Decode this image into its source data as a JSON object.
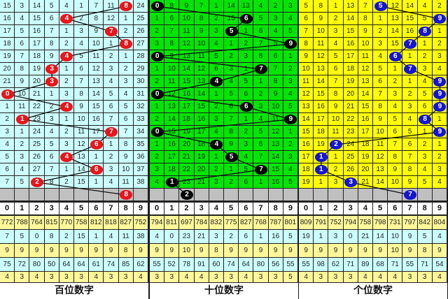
{
  "chart_data": {
    "type": "table",
    "header_digits": [
      "0",
      "1",
      "2",
      "3",
      "4",
      "5",
      "6",
      "7",
      "8",
      "9"
    ],
    "panels": [
      {
        "label": "百位数字",
        "cell_color": "#ccffff",
        "ball_color": "#e8151b",
        "rows": [
          [
            15,
            3,
            14,
            5,
            4,
            1,
            7,
            11,
            8,
            24
          ],
          [
            16,
            4,
            15,
            6,
            4,
            2,
            8,
            12,
            1,
            25
          ],
          [
            17,
            5,
            16,
            7,
            1,
            3,
            9,
            7,
            2,
            26
          ],
          [
            18,
            6,
            17,
            8,
            2,
            4,
            10,
            1,
            8,
            27
          ],
          [
            19,
            7,
            18,
            9,
            4,
            5,
            11,
            2,
            1,
            28
          ],
          [
            20,
            8,
            19,
            3,
            1,
            6,
            12,
            3,
            2,
            29
          ],
          [
            21,
            9,
            20,
            3,
            2,
            7,
            13,
            4,
            3,
            30
          ],
          [
            0,
            10,
            21,
            1,
            3,
            8,
            14,
            5,
            4,
            31
          ],
          [
            1,
            11,
            22,
            2,
            4,
            9,
            15,
            6,
            5,
            32
          ],
          [
            2,
            1,
            23,
            3,
            1,
            10,
            16,
            7,
            6,
            33
          ],
          [
            3,
            1,
            24,
            4,
            2,
            11,
            17,
            7,
            7,
            34
          ],
          [
            4,
            2,
            25,
            5,
            3,
            12,
            6,
            1,
            8,
            35
          ],
          [
            5,
            3,
            26,
            6,
            4,
            13,
            1,
            2,
            9,
            36
          ],
          [
            6,
            4,
            27,
            7,
            1,
            14,
            6,
            3,
            10,
            37
          ],
          [
            7,
            5,
            2,
            8,
            2,
            15,
            1,
            4,
            11,
            38
          ]
        ],
        "hits": [
          8,
          4,
          7,
          8,
          4,
          3,
          3,
          0,
          4,
          1,
          7,
          6,
          4,
          6,
          2
        ],
        "forecast": 8,
        "stats": [
          [
            772,
            788,
            764,
            815,
            770,
            758,
            812,
            818,
            827,
            752
          ],
          [
            7,
            5,
            0,
            8,
            2,
            15,
            1,
            4,
            11,
            38
          ],
          [
            9,
            9,
            9,
            9,
            9,
            9,
            9,
            9,
            8,
            9
          ],
          [
            75,
            72,
            80,
            50,
            64,
            64,
            61,
            74,
            85,
            62
          ],
          [
            4,
            3,
            4,
            3,
            3,
            3,
            4,
            3,
            3,
            4
          ]
        ]
      },
      {
        "label": "十位数字",
        "cell_color": "#00e600",
        "ball_color": "#000000",
        "rows": [
          [
            0,
            8,
            9,
            7,
            1,
            14,
            13,
            4,
            2,
            3
          ],
          [
            1,
            6,
            10,
            8,
            2,
            15,
            6,
            5,
            3,
            4
          ],
          [
            2,
            7,
            11,
            9,
            3,
            5,
            1,
            6,
            4,
            5
          ],
          [
            3,
            8,
            12,
            10,
            4,
            1,
            2,
            7,
            5,
            9
          ],
          [
            0,
            9,
            13,
            11,
            5,
            2,
            3,
            8,
            6,
            1
          ],
          [
            1,
            10,
            14,
            12,
            6,
            3,
            1,
            7,
            7,
            2
          ],
          [
            2,
            11,
            15,
            13,
            4,
            4,
            5,
            1,
            8,
            3
          ],
          [
            0,
            12,
            16,
            14,
            1,
            5,
            6,
            2,
            9,
            4
          ],
          [
            1,
            13,
            17,
            15,
            2,
            6,
            6,
            3,
            10,
            5
          ],
          [
            2,
            14,
            18,
            16,
            3,
            7,
            1,
            4,
            11,
            9
          ],
          [
            0,
            15,
            19,
            17,
            4,
            8,
            2,
            5,
            12,
            1
          ],
          [
            1,
            16,
            20,
            18,
            4,
            9,
            3,
            6,
            13,
            2
          ],
          [
            2,
            17,
            21,
            19,
            1,
            5,
            4,
            7,
            14,
            3
          ],
          [
            3,
            18,
            22,
            20,
            2,
            1,
            5,
            7,
            15,
            4
          ],
          [
            4,
            1,
            23,
            21,
            3,
            2,
            6,
            1,
            16,
            5
          ]
        ],
        "hits": [
          0,
          6,
          5,
          9,
          0,
          7,
          4,
          0,
          6,
          9,
          0,
          4,
          5,
          7,
          1
        ],
        "forecast": 2,
        "stats": [
          [
            794,
            811,
            697,
            784,
            832,
            775,
            827,
            768,
            787,
            801
          ],
          [
            4,
            0,
            23,
            21,
            3,
            2,
            6,
            1,
            16,
            5
          ],
          [
            9,
            9,
            10,
            9,
            8,
            9,
            9,
            9,
            9,
            9
          ],
          [
            55,
            52,
            78,
            91,
            60,
            74,
            64,
            80,
            56,
            55
          ],
          [
            3,
            3,
            4,
            4,
            3,
            3,
            4,
            3,
            3,
            5
          ]
        ]
      },
      {
        "label": "个位数字",
        "cell_color": "#ffff00",
        "ball_color": "#1414d2",
        "rows": [
          [
            5,
            8,
            1,
            13,
            7,
            5,
            12,
            14,
            4,
            2
          ],
          [
            6,
            9,
            2,
            14,
            8,
            1,
            13,
            15,
            5,
            9
          ],
          [
            7,
            10,
            3,
            15,
            9,
            2,
            14,
            16,
            8,
            1
          ],
          [
            8,
            11,
            4,
            16,
            10,
            3,
            15,
            7,
            1,
            2
          ],
          [
            9,
            12,
            5,
            17,
            11,
            4,
            6,
            1,
            2,
            3
          ],
          [
            10,
            13,
            6,
            18,
            12,
            5,
            1,
            7,
            3,
            4
          ],
          [
            11,
            14,
            7,
            19,
            13,
            6,
            2,
            1,
            4,
            9
          ],
          [
            12,
            15,
            8,
            20,
            14,
            7,
            3,
            2,
            5,
            9
          ],
          [
            13,
            16,
            9,
            21,
            15,
            8,
            4,
            3,
            6,
            9
          ],
          [
            14,
            17,
            10,
            22,
            16,
            9,
            5,
            4,
            8,
            1
          ],
          [
            15,
            18,
            11,
            23,
            17,
            10,
            6,
            5,
            1,
            9
          ],
          [
            16,
            19,
            2,
            24,
            18,
            11,
            7,
            6,
            2,
            1
          ],
          [
            17,
            1,
            1,
            25,
            19,
            12,
            8,
            7,
            3,
            2
          ],
          [
            18,
            1,
            2,
            26,
            20,
            13,
            9,
            8,
            4,
            3
          ],
          [
            19,
            1,
            3,
            3,
            21,
            14,
            10,
            9,
            5,
            4
          ]
        ],
        "hits": [
          5,
          9,
          8,
          7,
          6,
          7,
          9,
          9,
          9,
          8,
          9,
          2,
          1,
          1,
          3
        ],
        "forecast": 7,
        "stats": [
          [
            809,
            791,
            752,
            794,
            758,
            798,
            731,
            797,
            842,
            804
          ],
          [
            19,
            1,
            3,
            0,
            21,
            14,
            10,
            9,
            5,
            4
          ],
          [
            9,
            9,
            9,
            9,
            9,
            9,
            10,
            9,
            8,
            9
          ],
          [
            55,
            98,
            62,
            71,
            89,
            68,
            71,
            55,
            71,
            54
          ],
          [
            4,
            3,
            3,
            3,
            4,
            4,
            4,
            3,
            3,
            4
          ]
        ]
      }
    ]
  }
}
